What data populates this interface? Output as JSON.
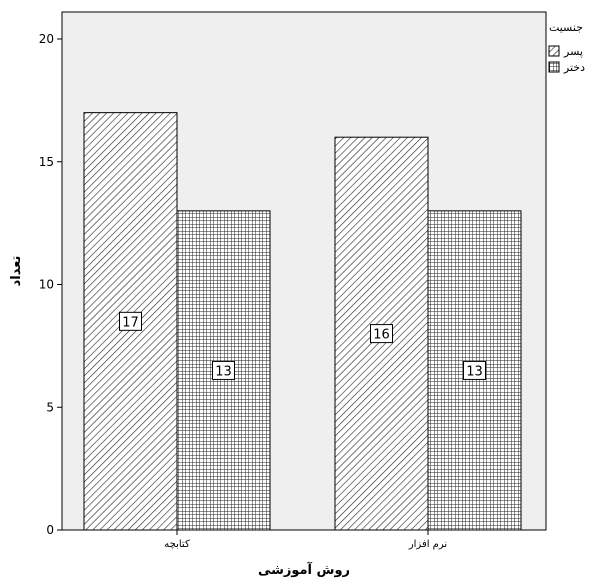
{
  "chart_data": {
    "type": "bar",
    "xlabel": "روش آموزشی",
    "ylabel": "تعداد",
    "categories": [
      "کتابچه",
      "نرم افزار"
    ],
    "series": [
      {
        "name": "پسر",
        "values": [
          17,
          16
        ],
        "pattern": "diagonal-hatch"
      },
      {
        "name": "دختر",
        "values": [
          13,
          13
        ],
        "pattern": "crosshatch"
      }
    ],
    "ylim": [
      0,
      21
    ],
    "yticks": [
      0,
      5,
      10,
      15,
      20
    ],
    "grid": false,
    "legend": {
      "title": "جنسیت",
      "placement": "top-right"
    },
    "colors": {
      "plot_background": "#efefef",
      "bar_fill": "#ffffff",
      "pattern": "#222222"
    }
  }
}
